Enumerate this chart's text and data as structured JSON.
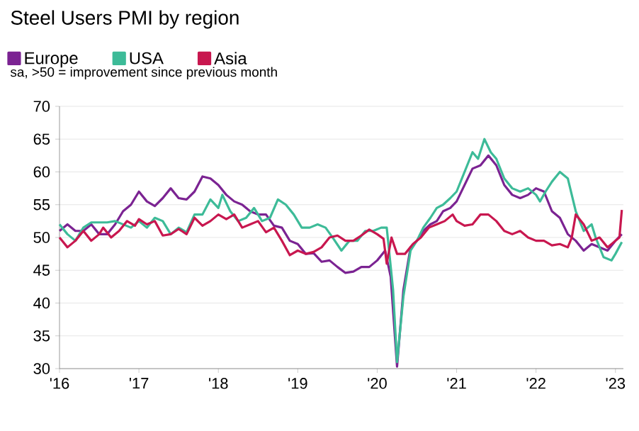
{
  "chart_data": {
    "type": "line",
    "title": "Steel Users PMI by region",
    "subtitle": "sa, >50 = improvement since previous month",
    "xlim": [
      2016,
      2023.1
    ],
    "ylim": [
      30,
      70
    ],
    "xticks": [
      {
        "value": 2016,
        "label": "'16"
      },
      {
        "value": 2017,
        "label": "'17"
      },
      {
        "value": 2018,
        "label": "'18"
      },
      {
        "value": 2019,
        "label": "'19"
      },
      {
        "value": 2020,
        "label": "'20"
      },
      {
        "value": 2021,
        "label": "'21"
      },
      {
        "value": 2022,
        "label": "'22"
      },
      {
        "value": 2023,
        "label": "'23"
      }
    ],
    "yticks": [
      30,
      35,
      40,
      45,
      50,
      55,
      60,
      65,
      70
    ],
    "grid": "y",
    "legend": "top",
    "series": [
      {
        "name": "Europe",
        "color": "#7b2392",
        "x": [
          2016.0,
          2016.1,
          2016.2,
          2016.3,
          2016.4,
          2016.5,
          2016.6,
          2016.7,
          2016.8,
          2016.9,
          2017.0,
          2017.1,
          2017.2,
          2017.3,
          2017.4,
          2017.5,
          2017.6,
          2017.7,
          2017.8,
          2017.9,
          2018.0,
          2018.1,
          2018.2,
          2018.3,
          2018.4,
          2018.5,
          2018.6,
          2018.7,
          2018.8,
          2018.9,
          2019.0,
          2019.1,
          2019.2,
          2019.3,
          2019.4,
          2019.5,
          2019.6,
          2019.7,
          2019.8,
          2019.9,
          2020.0,
          2020.1,
          2020.17,
          2020.25,
          2020.33,
          2020.42,
          2020.5,
          2020.58,
          2020.67,
          2020.75,
          2020.83,
          2020.92,
          2021.0,
          2021.1,
          2021.2,
          2021.3,
          2021.4,
          2021.5,
          2021.6,
          2021.7,
          2021.8,
          2021.9,
          2022.0,
          2022.1,
          2022.2,
          2022.3,
          2022.4,
          2022.5,
          2022.6,
          2022.7,
          2022.8,
          2022.9,
          2023.0,
          2023.08
        ],
        "values": [
          51,
          52,
          51,
          51,
          52,
          50.5,
          50.5,
          52,
          54,
          55,
          57,
          55.5,
          54.8,
          56,
          57.5,
          56,
          55.8,
          57,
          59.3,
          59,
          58,
          56.5,
          55.5,
          55,
          54,
          53.5,
          53.5,
          51.8,
          51.5,
          49.5,
          49,
          47.5,
          47.6,
          46.3,
          46.5,
          45.5,
          44.6,
          44.8,
          45.5,
          45.5,
          46.5,
          48,
          44,
          30.3,
          42,
          48.5,
          49.5,
          51,
          52,
          52.5,
          54,
          54.5,
          55.5,
          58,
          60.5,
          61,
          62.5,
          61,
          58,
          56.5,
          56,
          56.5,
          57.5,
          57,
          54,
          53,
          50.5,
          49.5,
          48,
          49,
          48.5,
          48,
          49.5,
          50.5
        ]
      },
      {
        "name": "USA",
        "color": "#3dbb98",
        "x": [
          2016.0,
          2016.1,
          2016.2,
          2016.3,
          2016.4,
          2016.5,
          2016.6,
          2016.7,
          2016.8,
          2016.9,
          2017.0,
          2017.1,
          2017.2,
          2017.3,
          2017.4,
          2017.5,
          2017.6,
          2017.7,
          2017.8,
          2017.9,
          2018.0,
          2018.05,
          2018.15,
          2018.25,
          2018.35,
          2018.45,
          2018.55,
          2018.65,
          2018.75,
          2018.85,
          2018.95,
          2019.05,
          2019.15,
          2019.25,
          2019.35,
          2019.45,
          2019.55,
          2019.65,
          2019.75,
          2019.85,
          2019.95,
          2020.05,
          2020.12,
          2020.2,
          2020.25,
          2020.33,
          2020.42,
          2020.5,
          2020.58,
          2020.67,
          2020.75,
          2020.83,
          2020.92,
          2021.0,
          2021.1,
          2021.2,
          2021.27,
          2021.35,
          2021.43,
          2021.5,
          2021.6,
          2021.7,
          2021.8,
          2021.9,
          2022.0,
          2022.05,
          2022.12,
          2022.2,
          2022.3,
          2022.4,
          2022.5,
          2022.6,
          2022.7,
          2022.75,
          2022.85,
          2022.95,
          2023.0,
          2023.08
        ],
        "values": [
          52,
          50.5,
          49.5,
          51.5,
          52.3,
          52.3,
          52.3,
          52.5,
          52,
          51.5,
          52.5,
          51.5,
          53,
          52.5,
          50.5,
          51.5,
          50.8,
          53.5,
          53.5,
          55.8,
          54.5,
          56.5,
          54,
          52.5,
          53,
          54.5,
          52.5,
          53,
          55.8,
          55,
          53.5,
          51.5,
          51.5,
          52,
          51.5,
          49.8,
          48,
          49.5,
          49.5,
          51,
          51,
          51.5,
          51.5,
          42,
          31,
          41,
          48,
          49.5,
          51.5,
          53,
          54.5,
          55,
          56,
          57,
          60,
          63,
          62,
          65,
          63,
          62,
          59,
          57.5,
          57,
          57.5,
          56.5,
          55.5,
          57,
          58.5,
          60,
          59,
          54,
          51,
          52,
          50,
          47,
          46.5,
          47.5,
          49.3
        ]
      },
      {
        "name": "Asia",
        "color": "#c8174f",
        "x": [
          2016.0,
          2016.1,
          2016.2,
          2016.3,
          2016.4,
          2016.5,
          2016.55,
          2016.65,
          2016.75,
          2016.85,
          2016.95,
          2017.0,
          2017.1,
          2017.2,
          2017.3,
          2017.4,
          2017.5,
          2017.6,
          2017.7,
          2017.8,
          2017.9,
          2018.0,
          2018.1,
          2018.2,
          2018.3,
          2018.4,
          2018.5,
          2018.6,
          2018.7,
          2018.8,
          2018.9,
          2019.0,
          2019.1,
          2019.2,
          2019.3,
          2019.4,
          2019.5,
          2019.6,
          2019.7,
          2019.8,
          2019.9,
          2020.0,
          2020.08,
          2020.12,
          2020.18,
          2020.25,
          2020.35,
          2020.45,
          2020.55,
          2020.65,
          2020.75,
          2020.85,
          2020.95,
          2021.0,
          2021.1,
          2021.2,
          2021.3,
          2021.4,
          2021.5,
          2021.6,
          2021.7,
          2021.8,
          2021.9,
          2022.0,
          2022.1,
          2022.2,
          2022.3,
          2022.4,
          2022.45,
          2022.5,
          2022.6,
          2022.7,
          2022.8,
          2022.9,
          2023.0,
          2023.05,
          2023.08
        ],
        "values": [
          50,
          48.5,
          49.5,
          51,
          49.5,
          50.5,
          51.5,
          50,
          51,
          52.5,
          51.8,
          52.8,
          52,
          52.5,
          50.3,
          50.5,
          51.3,
          50.5,
          53,
          51.8,
          52.5,
          53.5,
          52.8,
          53.5,
          51.5,
          52,
          52.5,
          50.8,
          51.5,
          49.5,
          47.3,
          48,
          47.5,
          47.8,
          48.5,
          50,
          50.3,
          49.5,
          49.5,
          50.3,
          51.2,
          50.5,
          49.8,
          46,
          50,
          47.5,
          47.5,
          49,
          50,
          51.5,
          52,
          52.5,
          53.5,
          52.5,
          51.8,
          52,
          53.5,
          53.5,
          52.5,
          51,
          50.5,
          51,
          50,
          49.5,
          49.5,
          48.8,
          49,
          48.5,
          50,
          53.5,
          52,
          49.5,
          50,
          48.5,
          49.5,
          50,
          54.2
        ]
      }
    ]
  }
}
